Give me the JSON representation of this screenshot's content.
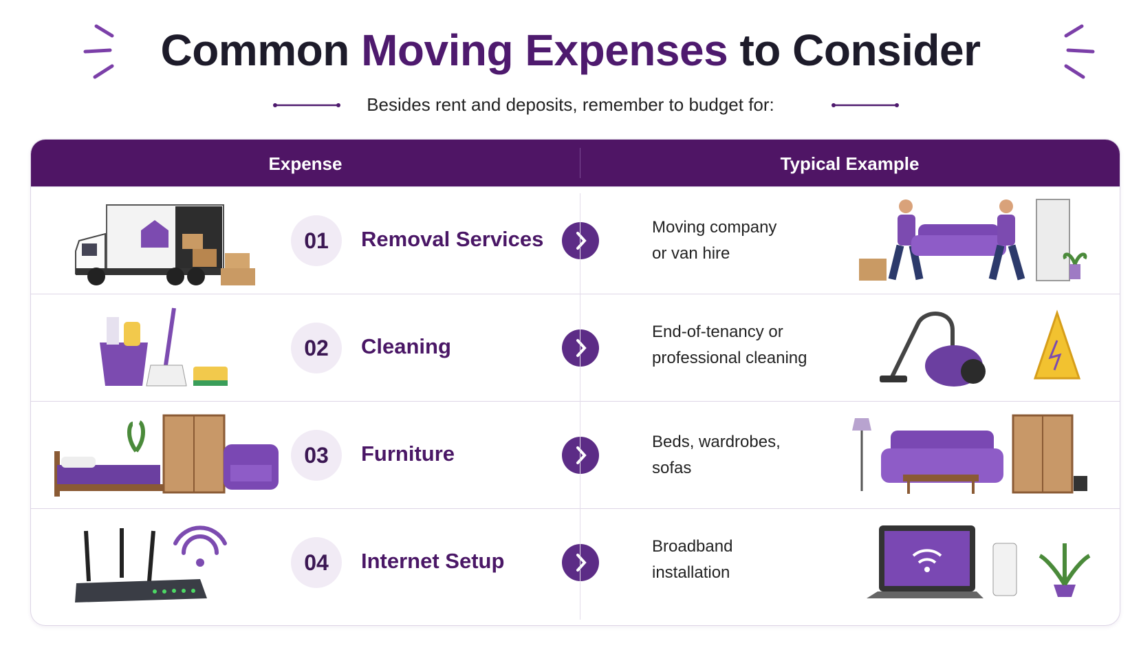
{
  "header": {
    "title": {
      "start": "Common",
      "highlight": "Moving Expenses",
      "end": "to Consider"
    },
    "subtitle": "Besides rent and deposits, remember to budget for:"
  },
  "table": {
    "columns": [
      "Expense",
      "Typical Example"
    ],
    "rows": [
      {
        "number": "01",
        "expense": "Removal Services",
        "example": [
          "Moving company",
          "or van hire"
        ]
      },
      {
        "number": "02",
        "expense": "Cleaning",
        "example": [
          "End-of-tenancy or",
          "professional cleaning"
        ]
      },
      {
        "number": "03",
        "expense": "Furniture",
        "example": [
          "Beds, wardrobes,",
          "sofas"
        ]
      },
      {
        "number": "04",
        "expense": "Internet Setup",
        "example": [
          "Broadband",
          "installation"
        ]
      }
    ]
  }
}
